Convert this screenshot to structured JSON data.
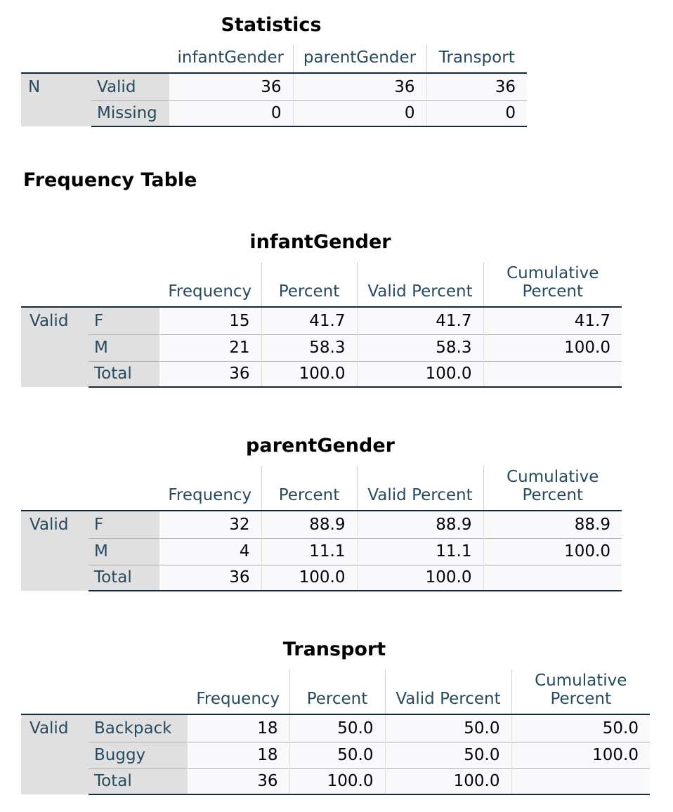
{
  "statistics": {
    "title": "Statistics",
    "columns": [
      "infantGender",
      "parentGender",
      "Transport"
    ],
    "row_group": "N",
    "rows": [
      {
        "label": "Valid",
        "values": [
          "36",
          "36",
          "36"
        ]
      },
      {
        "label": "Missing",
        "values": [
          "0",
          "0",
          "0"
        ]
      }
    ]
  },
  "frequency_heading": "Frequency Table",
  "freq_headers": {
    "frequency": "Frequency",
    "percent": "Percent",
    "valid_percent": "Valid Percent",
    "cumulative_line1": "Cumulative",
    "cumulative_line2": "Percent"
  },
  "tables": [
    {
      "title": "infantGender",
      "group": "Valid",
      "rows": [
        {
          "label": "F",
          "frequency": "15",
          "percent": "41.7",
          "valid_percent": "41.7",
          "cumulative": "41.7"
        },
        {
          "label": "M",
          "frequency": "21",
          "percent": "58.3",
          "valid_percent": "58.3",
          "cumulative": "100.0"
        },
        {
          "label": "Total",
          "frequency": "36",
          "percent": "100.0",
          "valid_percent": "100.0",
          "cumulative": ""
        }
      ]
    },
    {
      "title": "parentGender",
      "group": "Valid",
      "rows": [
        {
          "label": "F",
          "frequency": "32",
          "percent": "88.9",
          "valid_percent": "88.9",
          "cumulative": "88.9"
        },
        {
          "label": "M",
          "frequency": "4",
          "percent": "11.1",
          "valid_percent": "11.1",
          "cumulative": "100.0"
        },
        {
          "label": "Total",
          "frequency": "36",
          "percent": "100.0",
          "valid_percent": "100.0",
          "cumulative": ""
        }
      ]
    },
    {
      "title": "Transport",
      "group": "Valid",
      "rows": [
        {
          "label": "Backpack",
          "frequency": "18",
          "percent": "50.0",
          "valid_percent": "50.0",
          "cumulative": "50.0"
        },
        {
          "label": "Buggy",
          "frequency": "18",
          "percent": "50.0",
          "valid_percent": "50.0",
          "cumulative": "100.0"
        },
        {
          "label": "Total",
          "frequency": "36",
          "percent": "100.0",
          "valid_percent": "100.0",
          "cumulative": ""
        }
      ]
    }
  ]
}
